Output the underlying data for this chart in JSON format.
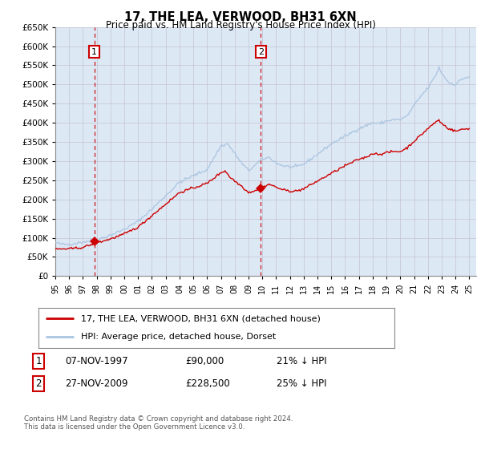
{
  "title": "17, THE LEA, VERWOOD, BH31 6XN",
  "subtitle": "Price paid vs. HM Land Registry's House Price Index (HPI)",
  "legend_line1": "17, THE LEA, VERWOOD, BH31 6XN (detached house)",
  "legend_line2": "HPI: Average price, detached house, Dorset",
  "sale1_date": "07-NOV-1997",
  "sale1_price": "£90,000",
  "sale1_note": "21% ↓ HPI",
  "sale2_date": "27-NOV-2009",
  "sale2_price": "£228,500",
  "sale2_note": "25% ↓ HPI",
  "copyright": "Contains HM Land Registry data © Crown copyright and database right 2024.\nThis data is licensed under the Open Government Licence v3.0.",
  "hpi_color": "#aac4e0",
  "price_color": "#cc0000",
  "marker_color": "#cc0000",
  "vline_color": "#cc0000",
  "grid_color": "#c8c8d8",
  "background_color": "#ffffff",
  "plot_bg_color": "#dde8f5",
  "ylim": [
    0,
    650000
  ],
  "xlim_start": 1995.0,
  "xlim_end": 2025.5,
  "sale1_year": 1997.83,
  "sale1_value": 90000,
  "sale2_year": 2009.9,
  "sale2_value": 228500,
  "xtick_years": [
    1995,
    1996,
    1997,
    1998,
    1999,
    2000,
    2001,
    2002,
    2003,
    2004,
    2005,
    2006,
    2007,
    2008,
    2009,
    2010,
    2011,
    2012,
    2013,
    2014,
    2015,
    2016,
    2017,
    2018,
    2019,
    2020,
    2021,
    2022,
    2023,
    2024,
    2025
  ]
}
